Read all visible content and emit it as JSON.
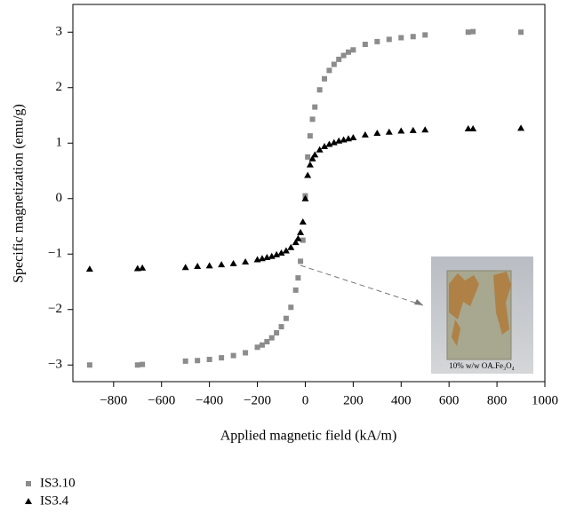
{
  "chart_data": {
    "type": "scatter",
    "x_label": "Applied magnetic field (kA/m)",
    "y_label": "Specific magnetization (emu/g)",
    "x": [
      -900,
      -700,
      -680,
      -500,
      -450,
      -400,
      -350,
      -300,
      -250,
      -200,
      -180,
      -160,
      -140,
      -120,
      -100,
      -80,
      -60,
      -40,
      -30,
      -20,
      -10,
      0,
      10,
      20,
      30,
      40,
      60,
      80,
      100,
      120,
      140,
      160,
      180,
      200,
      250,
      300,
      350,
      400,
      450,
      500,
      680,
      700,
      900
    ],
    "series": [
      {
        "name": "IS3.10",
        "color": "#8c8c8c",
        "marker": "square",
        "values": [
          -3.0,
          -3.0,
          -2.99,
          -2.93,
          -2.92,
          -2.9,
          -2.87,
          -2.83,
          -2.78,
          -2.68,
          -2.64,
          -2.58,
          -2.51,
          -2.42,
          -2.31,
          -2.16,
          -1.96,
          -1.65,
          -1.43,
          -1.13,
          -0.75,
          0.05,
          0.75,
          1.13,
          1.43,
          1.65,
          1.96,
          2.16,
          2.31,
          2.42,
          2.51,
          2.58,
          2.64,
          2.68,
          2.78,
          2.83,
          2.87,
          2.9,
          2.92,
          2.95,
          3.0,
          3.01,
          3.0
        ]
      },
      {
        "name": "IS3.4",
        "color": "#000000",
        "marker": "triangle",
        "values": [
          -1.27,
          -1.26,
          -1.25,
          -1.24,
          -1.22,
          -1.21,
          -1.19,
          -1.17,
          -1.14,
          -1.1,
          -1.08,
          -1.06,
          -1.04,
          -1.01,
          -0.98,
          -0.94,
          -0.88,
          -0.79,
          -0.72,
          -0.61,
          -0.42,
          0.0,
          0.42,
          0.61,
          0.72,
          0.79,
          0.88,
          0.94,
          0.98,
          1.01,
          1.04,
          1.06,
          1.08,
          1.1,
          1.15,
          1.18,
          1.2,
          1.22,
          1.23,
          1.24,
          1.26,
          1.26,
          1.27
        ]
      }
    ],
    "xlim": [
      -970,
      1000
    ],
    "ylim": [
      -3.3,
      3.5
    ],
    "xticks": [
      {
        "value": -800,
        "label": "−800"
      },
      {
        "value": -600,
        "label": "−600"
      },
      {
        "value": -400,
        "label": "−400"
      },
      {
        "value": -200,
        "label": "−200"
      },
      0,
      200,
      400,
      600,
      800,
      1000
    ],
    "yticks": [
      {
        "value": -3,
        "label": "−3"
      },
      {
        "value": -2,
        "label": "−2"
      },
      {
        "value": -1,
        "label": "−1"
      },
      0,
      1,
      2,
      3
    ],
    "inset_caption": "10% w/w OA.Fe₃O₄"
  }
}
